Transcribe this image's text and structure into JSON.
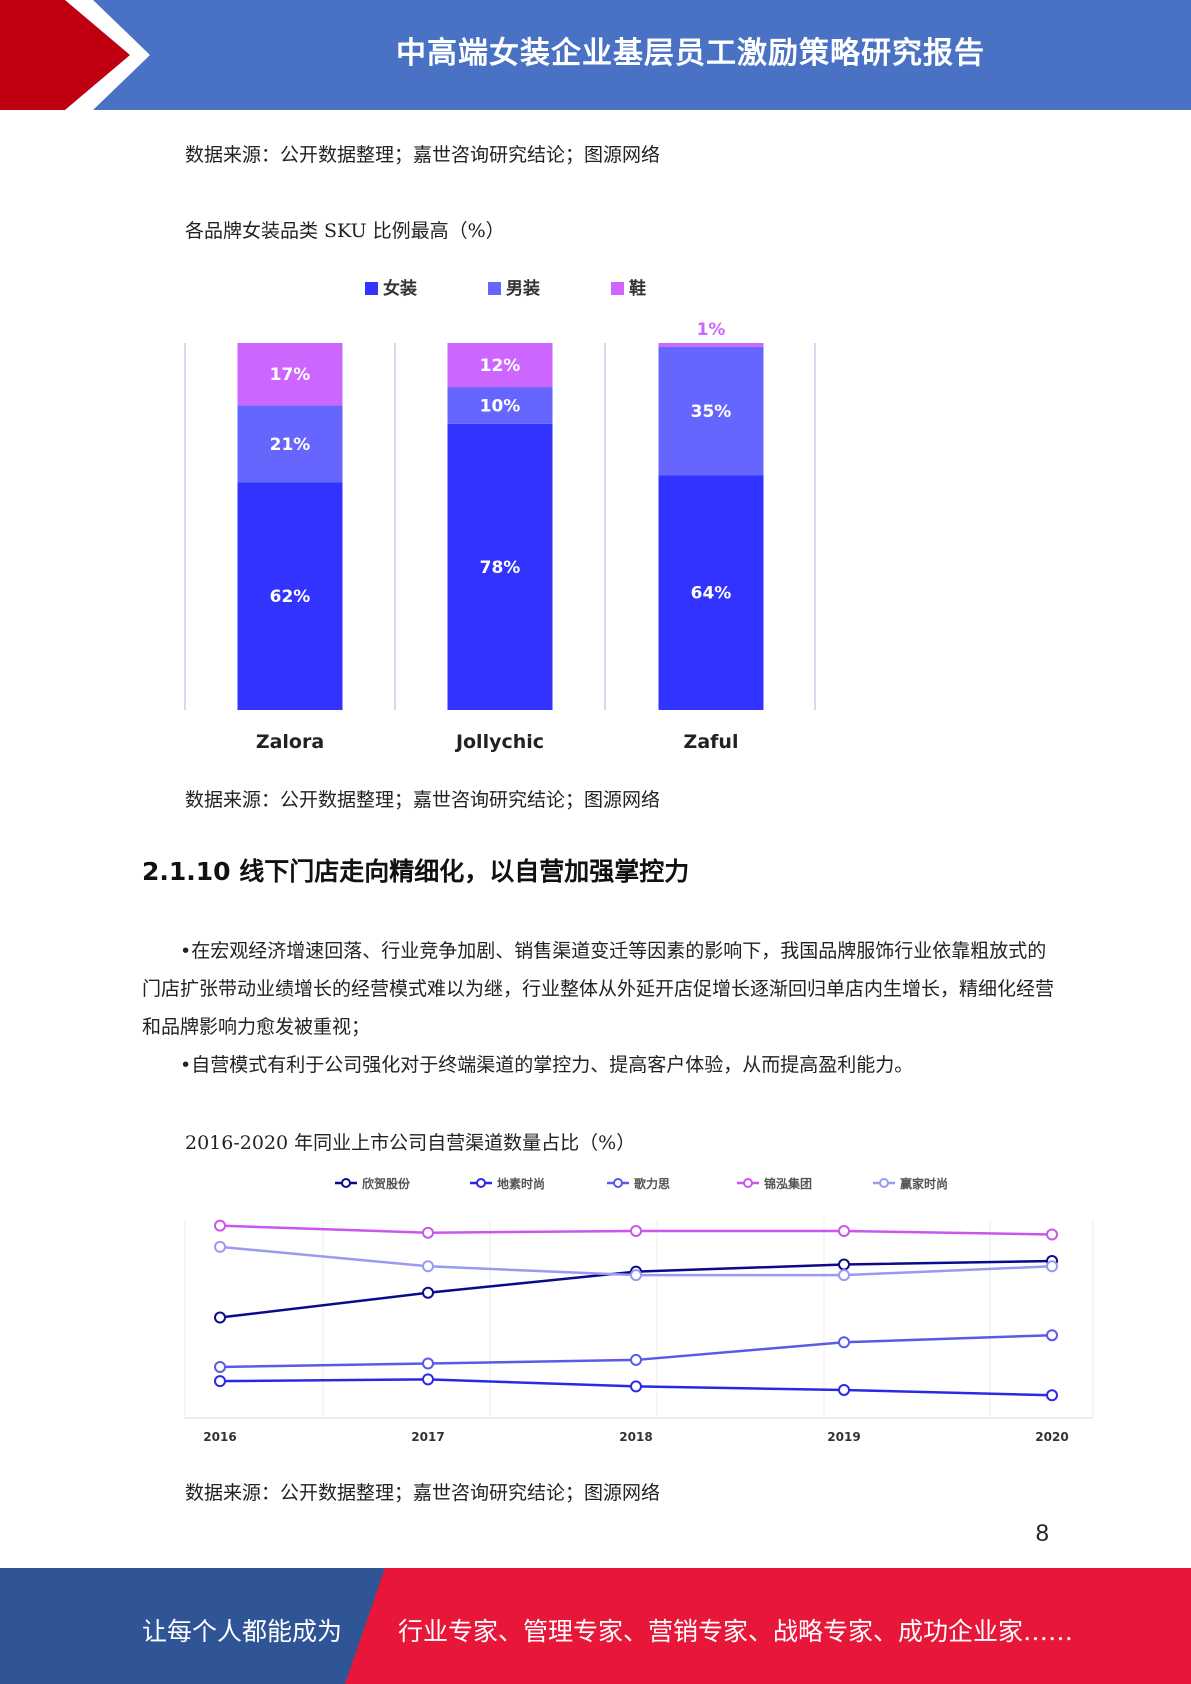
{
  "header": {
    "title": "中高端女装企业基层员工激励策略研究报告"
  },
  "source_note": "数据来源：公开数据整理；嘉世咨询研究结论；图源网络",
  "figure1": {
    "caption": "各品牌女装品类 SKU 比例最高（%）"
  },
  "section": {
    "heading": "2.1.10 线下门店走向精细化，以自营加强掌控力",
    "paragraphs": [
      "•在宏观经济增速回落、行业竞争加剧、销售渠道变迁等因素的影响下，我国品牌服饰行业依靠粗放式的门店扩张带动业绩增长的经营模式难以为继，行业整体从外延开店促增长逐渐回归单店内生增长，精细化经营和品牌影响力愈发被重视；",
      "•自营模式有利于公司强化对于终端渠道的掌控力、提高客户体验，从而提高盈利能力。"
    ]
  },
  "figure2": {
    "caption": "2016-2020 年同业上市公司自营渠道数量占比（%）"
  },
  "page_number": "8",
  "footer": {
    "left": "让每个人都能成为",
    "right": "行业专家、管理专家、营销专家、战略专家、成功企业家……"
  },
  "colors": {
    "header_blue": "#4a72c4",
    "accent_red": "#c00010",
    "footer_blue": "#2f5597",
    "footer_red": "#e8173a"
  },
  "chart_data": [
    {
      "type": "bar",
      "stacked": true,
      "title": "",
      "categories": [
        "Zalora",
        "Jollychic",
        "Zaful"
      ],
      "series": [
        {
          "name": "女装",
          "values": [
            62,
            78,
            64
          ],
          "color": "#3333ff"
        },
        {
          "name": "男装",
          "values": [
            21,
            10,
            35
          ],
          "color": "#6666ff"
        },
        {
          "name": "鞋",
          "values": [
            17,
            12,
            1
          ],
          "color": "#cc66ff"
        }
      ],
      "legend": "top"
    },
    {
      "type": "line",
      "title": "",
      "x": [
        "2016",
        "2017",
        "2018",
        "2019",
        "2020"
      ],
      "series": [
        {
          "name": "欣贺股份",
          "values": [
            49,
            56,
            62,
            64,
            65
          ],
          "color": "#0a0a8a"
        },
        {
          "name": "地素时尚",
          "values": [
            31,
            31.5,
            29.5,
            28.5,
            27
          ],
          "color": "#2a2ae6"
        },
        {
          "name": "歌力思",
          "values": [
            35,
            36,
            37,
            42,
            44
          ],
          "color": "#5a5ae8"
        },
        {
          "name": "锦泓集团",
          "values": [
            75,
            73,
            73.5,
            73.5,
            72.5
          ],
          "color": "#cc55ee"
        },
        {
          "name": "赢家时尚",
          "values": [
            69,
            63.5,
            61,
            61,
            63.5
          ],
          "color": "#9a9af0"
        }
      ],
      "ylim": [
        20,
        80
      ],
      "legend": "top"
    }
  ]
}
